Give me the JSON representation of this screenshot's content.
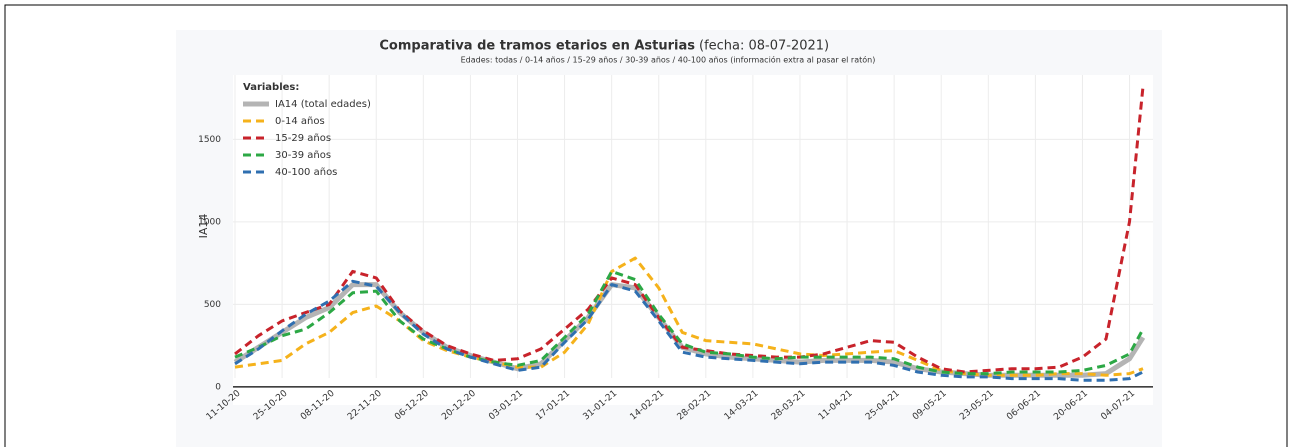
{
  "chart_data": {
    "type": "line",
    "title": "Comparativa de tramos etarios en Asturias",
    "title_date": "(fecha: 08-07-2021)",
    "subtitle": "Edades: todas  / 0-14 años / 15-29 años / 30-39 años / 40-100 años (información extra al pasar el ratón)",
    "y_label": "IA14",
    "legend_title": "Variables:",
    "legend": "top-left",
    "grid": true,
    "x": [
      "11-10-20",
      "18-10-20",
      "25-10-20",
      "01-11-20",
      "08-11-20",
      "15-11-20",
      "22-11-20",
      "29-11-20",
      "06-12-20",
      "13-12-20",
      "20-12-20",
      "27-12-20",
      "03-01-21",
      "10-01-21",
      "17-01-21",
      "24-01-21",
      "31-01-21",
      "07-02-21",
      "14-02-21",
      "21-02-21",
      "28-02-21",
      "07-03-21",
      "14-03-21",
      "21-03-21",
      "28-03-21",
      "04-04-21",
      "11-04-21",
      "18-04-21",
      "25-04-21",
      "02-05-21",
      "09-05-21",
      "16-05-21",
      "23-05-21",
      "30-05-21",
      "06-06-21",
      "13-06-21",
      "20-06-21",
      "27-06-21",
      "04-07-21",
      "08-07-21"
    ],
    "xlim": [
      "11-10-20",
      "08-07-21"
    ],
    "xticks": [
      "11-10-20",
      "25-10-20",
      "08-11-20",
      "22-11-20",
      "06-12-20",
      "20-12-20",
      "03-01-21",
      "17-01-21",
      "31-01-21",
      "14-02-21",
      "28-02-21",
      "14-03-21",
      "28-03-21",
      "11-04-21",
      "25-04-21",
      "09-05-21",
      "23-05-21",
      "06-06-21",
      "20-06-21",
      "04-07-21"
    ],
    "ylim": [
      -110,
      1890
    ],
    "yticks": [
      0,
      500,
      1000,
      1500
    ],
    "series": [
      {
        "name": "IA14 (total edades)",
        "color": "#b4b4b4",
        "dashed": false,
        "values": [
          150,
          240,
          330,
          420,
          480,
          620,
          620,
          450,
          330,
          240,
          190,
          150,
          110,
          140,
          280,
          420,
          620,
          600,
          420,
          240,
          200,
          180,
          170,
          160,
          150,
          160,
          160,
          160,
          150,
          110,
          90,
          80,
          70,
          70,
          70,
          70,
          70,
          80,
          170,
          300
        ]
      },
      {
        "name": "0-14 años",
        "color": "#f5b21b",
        "dashed": true,
        "values": [
          120,
          140,
          160,
          260,
          330,
          450,
          490,
          400,
          280,
          220,
          180,
          150,
          120,
          120,
          210,
          380,
          700,
          780,
          600,
          330,
          280,
          270,
          260,
          230,
          200,
          190,
          200,
          210,
          220,
          160,
          100,
          80,
          70,
          70,
          70,
          80,
          80,
          70,
          80,
          110
        ]
      },
      {
        "name": "15-29 años",
        "color": "#c8232b",
        "dashed": true,
        "values": [
          200,
          310,
          400,
          450,
          500,
          700,
          660,
          460,
          340,
          250,
          200,
          160,
          170,
          230,
          350,
          470,
          660,
          620,
          420,
          240,
          220,
          200,
          190,
          180,
          180,
          200,
          240,
          280,
          270,
          180,
          110,
          90,
          100,
          110,
          110,
          120,
          180,
          290,
          1000,
          1820
        ]
      },
      {
        "name": "30-39 años",
        "color": "#2ca845",
        "dashed": true,
        "values": [
          180,
          240,
          310,
          350,
          450,
          570,
          580,
          400,
          290,
          230,
          180,
          150,
          130,
          160,
          300,
          440,
          700,
          650,
          440,
          260,
          210,
          200,
          180,
          170,
          180,
          180,
          180,
          180,
          170,
          120,
          90,
          80,
          80,
          90,
          90,
          90,
          100,
          130,
          200,
          350
        ]
      },
      {
        "name": "40-100 años",
        "color": "#2f6fb0",
        "dashed": true,
        "values": [
          140,
          230,
          340,
          440,
          520,
          640,
          610,
          450,
          320,
          230,
          180,
          140,
          100,
          120,
          270,
          410,
          620,
          580,
          400,
          210,
          180,
          170,
          160,
          150,
          140,
          150,
          150,
          150,
          130,
          90,
          70,
          60,
          60,
          50,
          50,
          50,
          40,
          40,
          50,
          90
        ]
      }
    ]
  }
}
